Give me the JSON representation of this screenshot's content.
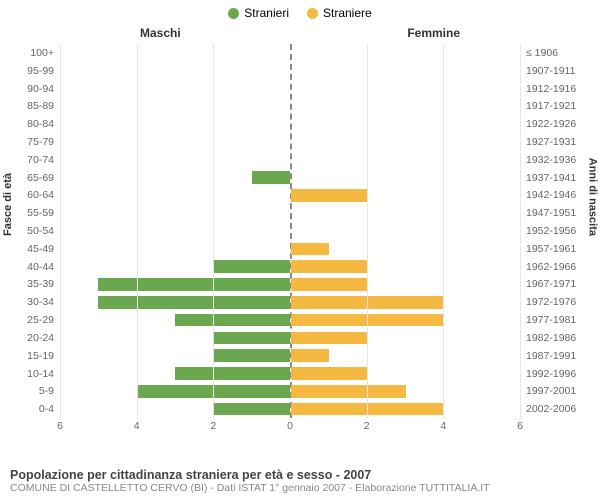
{
  "legend": {
    "items": [
      {
        "label": "Stranieri",
        "color": "#6aa74f"
      },
      {
        "label": "Straniere",
        "color": "#f5b841"
      }
    ]
  },
  "column_headers": {
    "left": "Maschi",
    "right": "Femmine"
  },
  "axis_titles": {
    "left": "Fasce di età",
    "right": "Anni di nascita"
  },
  "chart": {
    "type": "population-pyramid",
    "xlim": 6,
    "xtick_step": 2,
    "bar_colors": {
      "male": "#6aa74f",
      "female": "#f5b841"
    },
    "background_color": "#ffffff",
    "grid_color": "#e6e6e6",
    "center_line_color": "#888888",
    "label_fontsize": 10.5,
    "header_fontsize": 12,
    "rows": [
      {
        "age": "100+",
        "birth": "≤ 1906",
        "m": 0,
        "f": 0
      },
      {
        "age": "95-99",
        "birth": "1907-1911",
        "m": 0,
        "f": 0
      },
      {
        "age": "90-94",
        "birth": "1912-1916",
        "m": 0,
        "f": 0
      },
      {
        "age": "85-89",
        "birth": "1917-1921",
        "m": 0,
        "f": 0
      },
      {
        "age": "80-84",
        "birth": "1922-1926",
        "m": 0,
        "f": 0
      },
      {
        "age": "75-79",
        "birth": "1927-1931",
        "m": 0,
        "f": 0
      },
      {
        "age": "70-74",
        "birth": "1932-1936",
        "m": 0,
        "f": 0
      },
      {
        "age": "65-69",
        "birth": "1937-1941",
        "m": 1,
        "f": 0
      },
      {
        "age": "60-64",
        "birth": "1942-1946",
        "m": 0,
        "f": 2
      },
      {
        "age": "55-59",
        "birth": "1947-1951",
        "m": 0,
        "f": 0
      },
      {
        "age": "50-54",
        "birth": "1952-1956",
        "m": 0,
        "f": 0
      },
      {
        "age": "45-49",
        "birth": "1957-1961",
        "m": 0,
        "f": 1
      },
      {
        "age": "40-44",
        "birth": "1962-1966",
        "m": 2,
        "f": 2
      },
      {
        "age": "35-39",
        "birth": "1967-1971",
        "m": 5,
        "f": 2
      },
      {
        "age": "30-34",
        "birth": "1972-1976",
        "m": 5,
        "f": 4
      },
      {
        "age": "25-29",
        "birth": "1977-1981",
        "m": 3,
        "f": 4
      },
      {
        "age": "20-24",
        "birth": "1982-1986",
        "m": 2,
        "f": 2
      },
      {
        "age": "15-19",
        "birth": "1987-1991",
        "m": 2,
        "f": 1
      },
      {
        "age": "10-14",
        "birth": "1992-1996",
        "m": 3,
        "f": 2
      },
      {
        "age": "5-9",
        "birth": "1997-2001",
        "m": 4,
        "f": 3
      },
      {
        "age": "0-4",
        "birth": "2002-2006",
        "m": 2,
        "f": 4
      }
    ]
  },
  "xticks_left": [
    "6",
    "4",
    "2",
    "0"
  ],
  "xticks_right": [
    "2",
    "4",
    "6"
  ],
  "footer": {
    "title": "Popolazione per cittadinanza straniera per età e sesso - 2007",
    "subtitle": "COMUNE DI CASTELLETTO CERVO (BI) - Dati ISTAT 1° gennaio 2007 - Elaborazione TUTTITALIA.IT"
  }
}
